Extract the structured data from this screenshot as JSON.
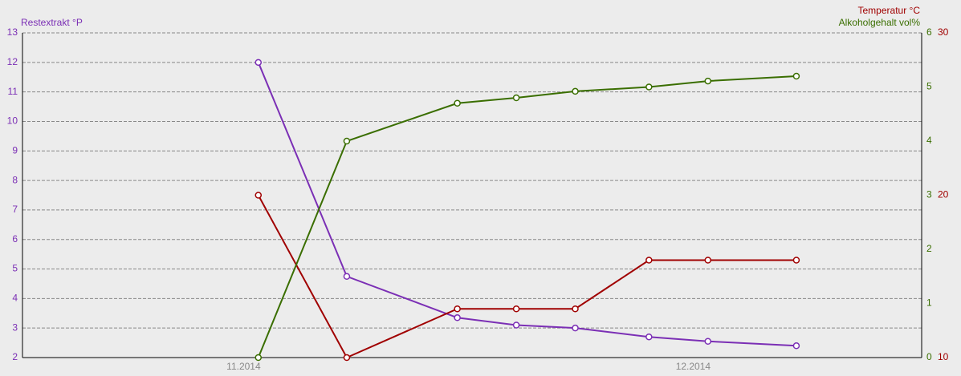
{
  "chart_data": {
    "type": "line",
    "x": [
      16,
      22,
      29.5,
      33.5,
      37.5,
      42.5,
      46.5,
      52.5
    ],
    "xlim": [
      0,
      61
    ],
    "xticks": [
      {
        "value": 15,
        "label": "11.2014"
      },
      {
        "value": 45.5,
        "label": "12.2014"
      }
    ],
    "ylabel": "Restextrakt °P",
    "ylim": [
      2,
      13
    ],
    "yticks": [
      2,
      3,
      4,
      5,
      6,
      7,
      8,
      9,
      10,
      11,
      12,
      13
    ],
    "y2label": "Temperatur °C",
    "y2lim": [
      10,
      30
    ],
    "y2ticks": [
      10,
      20,
      30
    ],
    "y3label": "Alkoholgehalt vol%",
    "y3lim": [
      0,
      6
    ],
    "y3ticks": [
      0,
      1,
      2,
      3,
      4,
      5,
      6
    ],
    "grid": true,
    "series": [
      {
        "name": "Restextrakt",
        "color": "#7b2fb5",
        "axis": "y",
        "values": [
          12,
          4.75,
          3.35,
          3.1,
          3.0,
          2.7,
          2.55,
          2.4
        ]
      },
      {
        "name": "Temperatur",
        "color": "#a00000",
        "axis": "y2",
        "values": [
          20,
          10,
          13,
          13,
          13,
          16,
          16,
          16
        ]
      },
      {
        "name": "Alkoholgehalt",
        "color": "#3a6e00",
        "axis": "y3",
        "values": [
          0,
          4.0,
          4.7,
          4.8,
          4.92,
          5.0,
          5.11,
          5.2
        ]
      }
    ]
  }
}
